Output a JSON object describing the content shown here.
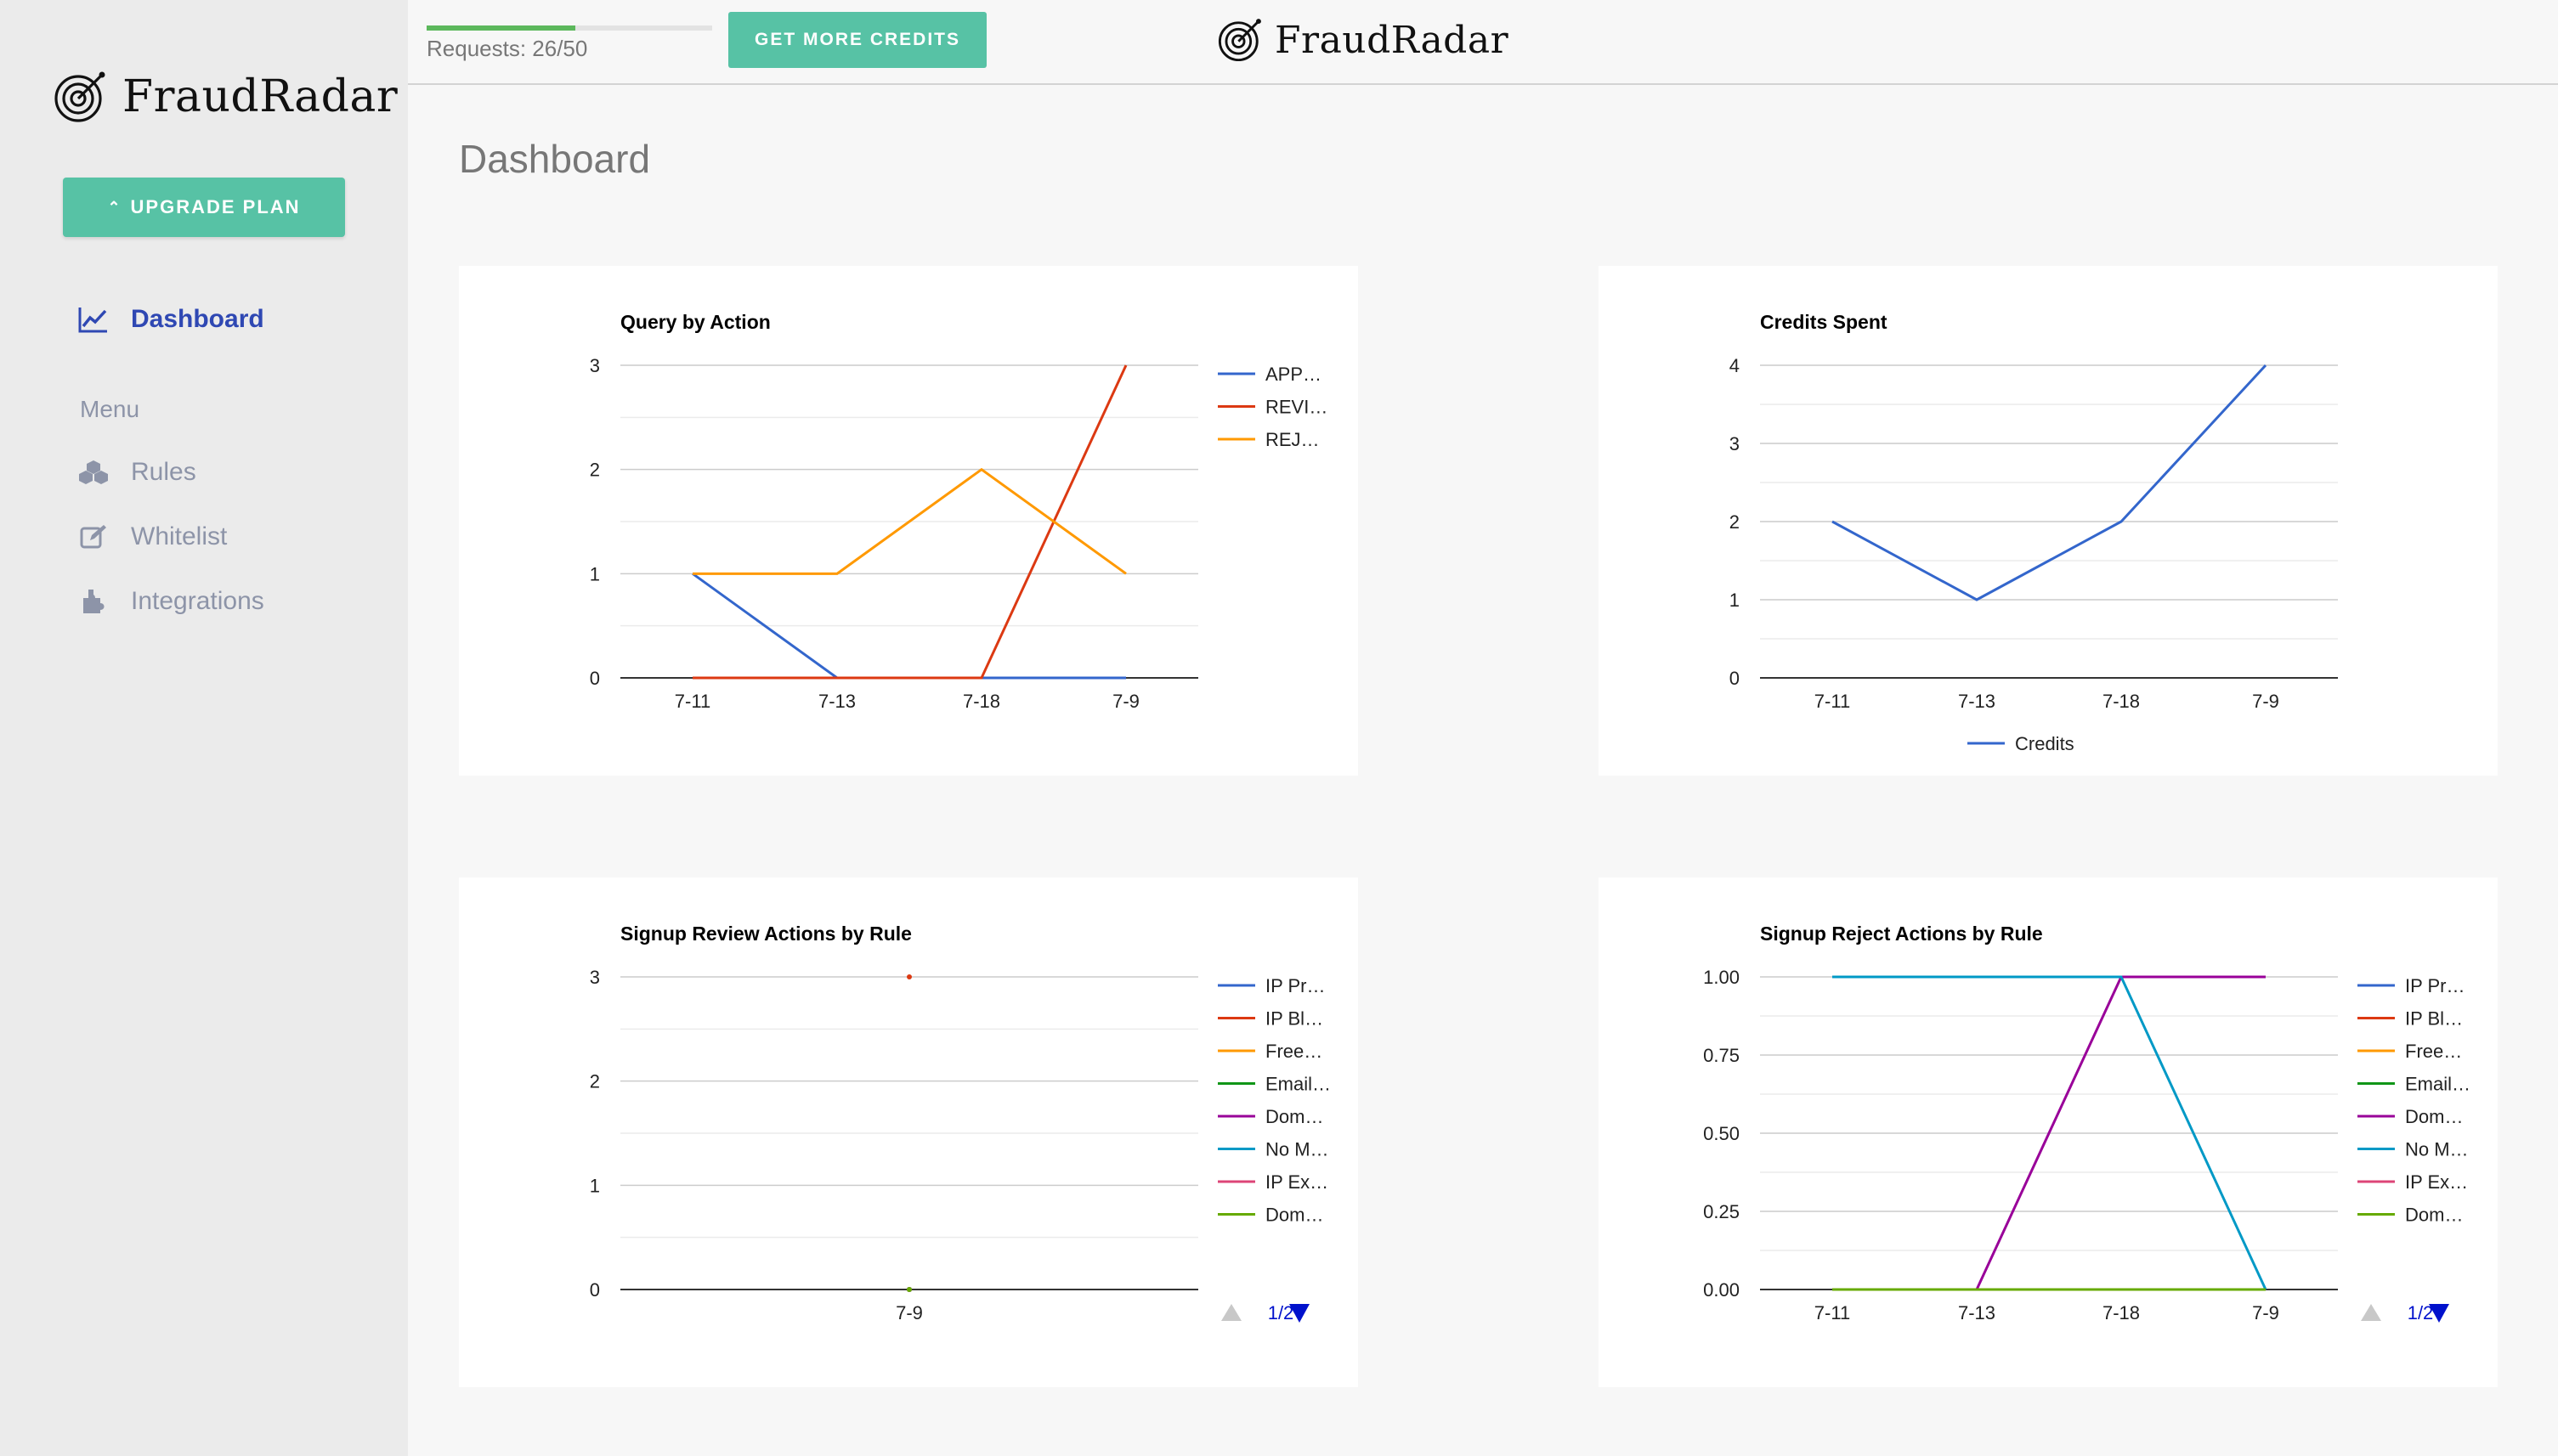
{
  "brand": {
    "name": "FraudRadar"
  },
  "sidebar": {
    "upgrade_label": "UPGRADE PLAN",
    "dashboard_label": "Dashboard",
    "menu_heading": "Menu",
    "items": [
      {
        "label": "Rules",
        "icon": "cubes-icon"
      },
      {
        "label": "Whitelist",
        "icon": "edit-icon"
      },
      {
        "label": "Integrations",
        "icon": "puzzle-icon"
      }
    ]
  },
  "topbar": {
    "requests_label": "Requests: 26/50",
    "requests_used": 26,
    "requests_total": 50,
    "credits_button": "GET MORE CREDITS"
  },
  "page": {
    "title": "Dashboard"
  },
  "colors": {
    "accent": "#57c2a5",
    "nav_active": "#2f48b3",
    "nav_inactive": "#8d94a8",
    "progress": "#5cb85c"
  },
  "chart_data": [
    {
      "type": "line",
      "title": "Query by Action",
      "categories": [
        "7-11",
        "7-13",
        "7-18",
        "7-9"
      ],
      "ylim": [
        0,
        3
      ],
      "yticks": [
        "0",
        "1",
        "2",
        "3"
      ],
      "yticks_values": [
        0,
        1,
        2,
        3
      ],
      "legend": "right",
      "series": [
        {
          "name": "APP…",
          "color": "#3366cc",
          "values": [
            1,
            0,
            0,
            0
          ]
        },
        {
          "name": "REVI…",
          "color": "#dc3912",
          "values": [
            0,
            0,
            0,
            3
          ]
        },
        {
          "name": "REJ…",
          "color": "#ff9900",
          "values": [
            1,
            1,
            2,
            1
          ]
        }
      ]
    },
    {
      "type": "line",
      "title": "Credits Spent",
      "categories": [
        "7-11",
        "7-13",
        "7-18",
        "7-9"
      ],
      "ylim": [
        0,
        4
      ],
      "yticks": [
        "0",
        "1",
        "2",
        "3",
        "4"
      ],
      "yticks_values": [
        0,
        1,
        2,
        3,
        4
      ],
      "legend": "bottom",
      "series": [
        {
          "name": "Credits",
          "color": "#3366cc",
          "values": [
            2,
            1,
            2,
            4
          ]
        }
      ]
    },
    {
      "type": "line",
      "title": "Signup Review Actions by Rule",
      "categories": [
        "7-9"
      ],
      "ylim": [
        0,
        3
      ],
      "yticks": [
        "0",
        "1",
        "2",
        "3"
      ],
      "yticks_values": [
        0,
        1,
        2,
        3
      ],
      "legend": "right",
      "legend_page": "1/2",
      "series": [
        {
          "name": "IP Pr…",
          "color": "#3366cc",
          "values": [
            0
          ]
        },
        {
          "name": "IP Bl…",
          "color": "#dc3912",
          "values": [
            3
          ]
        },
        {
          "name": "Free…",
          "color": "#ff9900",
          "values": [
            0
          ]
        },
        {
          "name": "Email…",
          "color": "#109618",
          "values": [
            0
          ]
        },
        {
          "name": "Dom…",
          "color": "#990099",
          "values": [
            0
          ]
        },
        {
          "name": "No M…",
          "color": "#0099c6",
          "values": [
            0
          ]
        },
        {
          "name": "IP Ex…",
          "color": "#dd4477",
          "values": [
            0
          ]
        },
        {
          "name": "Dom…",
          "color": "#66aa00",
          "values": [
            0
          ]
        }
      ]
    },
    {
      "type": "line",
      "title": "Signup Reject Actions by Rule",
      "categories": [
        "7-11",
        "7-13",
        "7-18",
        "7-9"
      ],
      "ylim": [
        0,
        1
      ],
      "yticks": [
        "0.00",
        "0.25",
        "0.50",
        "0.75",
        "1.00"
      ],
      "yticks_values": [
        0,
        0.25,
        0.5,
        0.75,
        1
      ],
      "legend": "right",
      "legend_page": "1/2",
      "series": [
        {
          "name": "IP Pr…",
          "color": "#3366cc",
          "values": [
            0,
            0,
            0,
            0
          ]
        },
        {
          "name": "IP Bl…",
          "color": "#dc3912",
          "values": [
            0,
            0,
            0,
            0
          ]
        },
        {
          "name": "Free…",
          "color": "#ff9900",
          "values": [
            0,
            0,
            0,
            0
          ]
        },
        {
          "name": "Email…",
          "color": "#109618",
          "values": [
            0,
            0,
            0,
            0
          ]
        },
        {
          "name": "Dom…",
          "color": "#990099",
          "values": [
            null,
            0,
            1,
            1
          ]
        },
        {
          "name": "No M…",
          "color": "#0099c6",
          "values": [
            1,
            1,
            1,
            0
          ]
        },
        {
          "name": "IP Ex…",
          "color": "#dd4477",
          "values": [
            0,
            0,
            0,
            0
          ]
        },
        {
          "name": "Dom…",
          "color": "#66aa00",
          "values": [
            0,
            0,
            0,
            0
          ]
        }
      ]
    }
  ]
}
